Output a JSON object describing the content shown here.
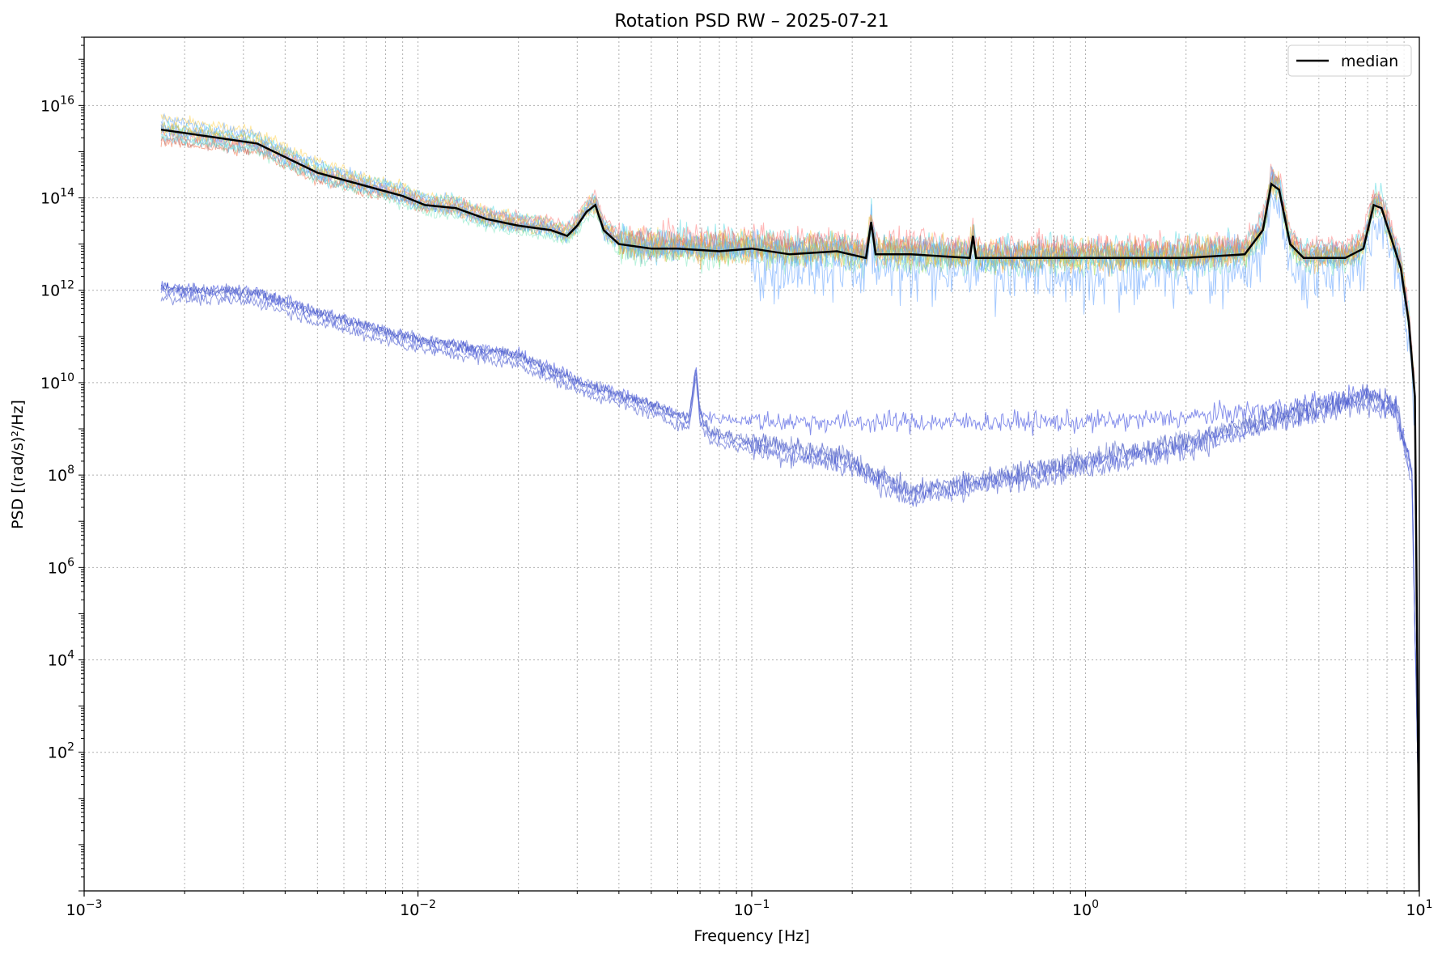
{
  "chart_data": {
    "type": "line",
    "title": "Rotation PSD RW – 2025-07-21",
    "xlabel": "Frequency [Hz]",
    "ylabel": "PSD [(rad/s)²/Hz]",
    "xscale": "log",
    "yscale": "log",
    "xlim": [
      0.001,
      10
    ],
    "ylim": [
      0.1,
      3e+17
    ],
    "x_ticks": [
      {
        "value": 0.001,
        "base": "10",
        "exp": "−3"
      },
      {
        "value": 0.01,
        "base": "10",
        "exp": "−2"
      },
      {
        "value": 0.1,
        "base": "10",
        "exp": "−1"
      },
      {
        "value": 1,
        "base": "10",
        "exp": "0"
      },
      {
        "value": 10,
        "base": "10",
        "exp": "1"
      }
    ],
    "y_ticks": [
      {
        "value": 100,
        "base": "10",
        "exp": "2"
      },
      {
        "value": 10000,
        "base": "10",
        "exp": "4"
      },
      {
        "value": 1000000,
        "base": "10",
        "exp": "6"
      },
      {
        "value": 100000000,
        "base": "10",
        "exp": "8"
      },
      {
        "value": 10000000000,
        "base": "10",
        "exp": "10"
      },
      {
        "value": 1000000000000,
        "base": "10",
        "exp": "12"
      },
      {
        "value": 100000000000000,
        "base": "10",
        "exp": "14"
      },
      {
        "value": 10000000000000000,
        "base": "10",
        "exp": "16"
      }
    ],
    "grid": "both major and minor, dotted",
    "legend": {
      "placement": "top-right",
      "entries": [
        {
          "label": "median",
          "color": "#000000"
        }
      ]
    },
    "series_colors": [
      "#ffd24d",
      "#3d7ff0",
      "#f06a40",
      "#9ed84a",
      "#4fd8e0",
      "#b06a6a",
      "#7fe8c0",
      "#f5a742",
      "#6aa7ff",
      "#ff7a7a",
      "#5ac8f0",
      "#e0c040"
    ],
    "low_group_colors": [
      "#3344dd",
      "#4455cc",
      "#2233bb",
      "#5566dd",
      "#6677cc"
    ],
    "series": [
      {
        "name": "median",
        "color": "#000000",
        "x": [
          0.0017,
          0.0033,
          0.005,
          0.007,
          0.009,
          0.0105,
          0.013,
          0.016,
          0.02,
          0.025,
          0.028,
          0.03,
          0.032,
          0.034,
          0.036,
          0.04,
          0.05,
          0.06,
          0.08,
          0.1,
          0.13,
          0.18,
          0.22,
          0.228,
          0.235,
          0.3,
          0.45,
          0.46,
          0.47,
          0.6,
          1,
          2,
          3,
          3.4,
          3.6,
          3.8,
          4.1,
          4.5,
          5,
          6,
          6.8,
          7.3,
          7.7,
          8.2,
          8.8,
          9.3,
          9.7,
          10
        ],
        "y": [
          3000000000000000.0,
          1500000000000000.0,
          350000000000000.0,
          180000000000000.0,
          110000000000000.0,
          70000000000000.0,
          60000000000000.0,
          35000000000000.0,
          25000000000000.0,
          20000000000000.0,
          15000000000000.0,
          25000000000000.0,
          50000000000000.0,
          70000000000000.0,
          20000000000000.0,
          10000000000000.0,
          8000000000000.0,
          8000000000000.0,
          7000000000000.0,
          8000000000000.0,
          6000000000000.0,
          7000000000000.0,
          5000000000000.0,
          30000000000000.0,
          6000000000000.0,
          6000000000000.0,
          5000000000000.0,
          15000000000000.0,
          5000000000000.0,
          5000000000000.0,
          5000000000000.0,
          5000000000000.0,
          6000000000000.0,
          20000000000000.0,
          200000000000000.0,
          150000000000000.0,
          10000000000000.0,
          5000000000000.0,
          5000000000000.0,
          5000000000000.0,
          8000000000000.0,
          70000000000000.0,
          60000000000000.0,
          15000000000000.0,
          3000000000000.0,
          200000000000.0,
          5000000000.0,
          0.1
        ]
      }
    ]
  }
}
